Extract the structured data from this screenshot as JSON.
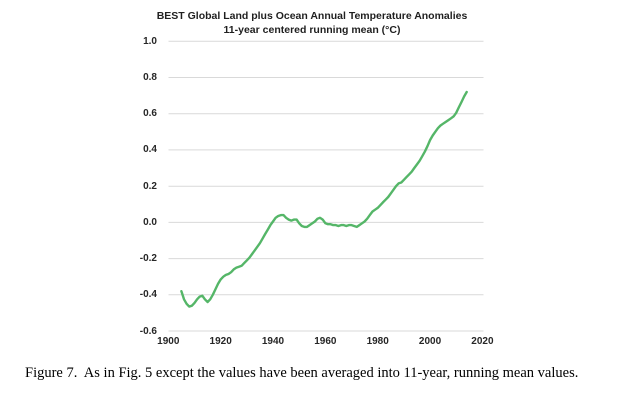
{
  "chart": {
    "title_line1": "BEST Global Land plus Ocean Annual Temperature Anomalies",
    "title_line2": "11-year centered running mean (°C)",
    "line_color": "#55b668",
    "gridline_color": "#d9d9d9",
    "text_color": "#262626"
  },
  "caption": "Figure 7.  As in Fig. 5 except the values have been averaged into 11-year, running mean values.",
  "chart_data": {
    "type": "line",
    "title": "BEST Global Land plus Ocean Annual Temperature Anomalies",
    "subtitle": "11-year centered running mean (°C)",
    "xlabel": "",
    "ylabel": "",
    "xlim": [
      1900,
      2020
    ],
    "ylim": [
      -0.6,
      1.0
    ],
    "x_ticks": [
      "1900",
      "1920",
      "1940",
      "1960",
      "1980",
      "2000",
      "2020"
    ],
    "y_ticks": [
      "1.0",
      "0.8",
      "0.6",
      "0.4",
      "0.2",
      "0.0",
      "-0.2",
      "-0.4",
      "-0.6"
    ],
    "grid": "horizontal",
    "legend": "none",
    "series": [
      {
        "name": "11-year centered running mean (°C)",
        "color": "#55b668",
        "x": [
          1905,
          1906,
          1907,
          1908,
          1909,
          1910,
          1911,
          1912,
          1913,
          1914,
          1915,
          1916,
          1917,
          1918,
          1919,
          1920,
          1921,
          1922,
          1923,
          1924,
          1925,
          1926,
          1927,
          1928,
          1929,
          1930,
          1931,
          1932,
          1933,
          1934,
          1935,
          1936,
          1937,
          1938,
          1939,
          1940,
          1941,
          1942,
          1943,
          1944,
          1945,
          1946,
          1947,
          1948,
          1949,
          1950,
          1951,
          1952,
          1953,
          1954,
          1955,
          1956,
          1957,
          1958,
          1959,
          1960,
          1961,
          1962,
          1963,
          1964,
          1965,
          1966,
          1967,
          1968,
          1969,
          1970,
          1971,
          1972,
          1973,
          1974,
          1975,
          1976,
          1977,
          1978,
          1979,
          1980,
          1981,
          1982,
          1983,
          1984,
          1985,
          1986,
          1987,
          1988,
          1989,
          1990,
          1991,
          1992,
          1993,
          1994,
          1995,
          1996,
          1997,
          1998,
          1999,
          2000,
          2001,
          2002,
          2003,
          2004,
          2005,
          2006,
          2007,
          2008,
          2009,
          2010,
          2011,
          2012,
          2013,
          2014
        ],
        "y": [
          -0.38,
          -0.425,
          -0.45,
          -0.465,
          -0.46,
          -0.445,
          -0.425,
          -0.41,
          -0.405,
          -0.425,
          -0.44,
          -0.425,
          -0.4,
          -0.37,
          -0.34,
          -0.315,
          -0.3,
          -0.29,
          -0.285,
          -0.275,
          -0.26,
          -0.25,
          -0.245,
          -0.24,
          -0.225,
          -0.21,
          -0.195,
          -0.175,
          -0.155,
          -0.135,
          -0.115,
          -0.09,
          -0.065,
          -0.04,
          -0.015,
          0.005,
          0.025,
          0.035,
          0.04,
          0.04,
          0.025,
          0.015,
          0.01,
          0.015,
          0.015,
          -0.005,
          -0.02,
          -0.025,
          -0.025,
          -0.015,
          -0.005,
          0.005,
          0.02,
          0.025,
          0.015,
          -0.005,
          -0.01,
          -0.01,
          -0.015,
          -0.015,
          -0.02,
          -0.015,
          -0.015,
          -0.02,
          -0.015,
          -0.015,
          -0.02,
          -0.025,
          -0.015,
          -0.005,
          0.005,
          0.02,
          0.04,
          0.06,
          0.07,
          0.08,
          0.095,
          0.11,
          0.125,
          0.14,
          0.16,
          0.18,
          0.2,
          0.215,
          0.22,
          0.235,
          0.25,
          0.265,
          0.28,
          0.3,
          0.32,
          0.34,
          0.365,
          0.39,
          0.42,
          0.455,
          0.48,
          0.5,
          0.52,
          0.535,
          0.545,
          0.555,
          0.565,
          0.575,
          0.585,
          0.605,
          0.635,
          0.665,
          0.695,
          0.72
        ]
      }
    ]
  }
}
